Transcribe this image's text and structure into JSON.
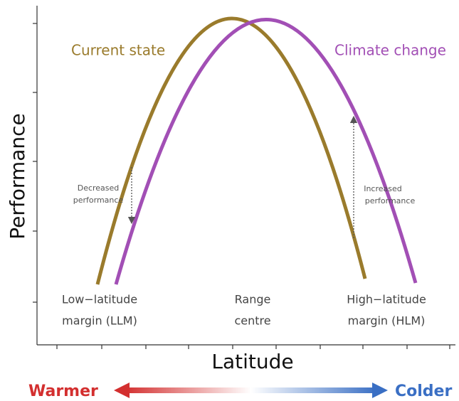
{
  "curves": {
    "current": "Current state",
    "climate": "Climate change"
  },
  "axes": {
    "y_label": "Performance",
    "x_label": "Latitude"
  },
  "positions": {
    "low": [
      "Low−latitude",
      "margin (LLM)"
    ],
    "centre": [
      "Range",
      "centre"
    ],
    "high": [
      "High−latitude",
      "margin (HLM)"
    ]
  },
  "annotations": {
    "decreased": [
      "Decreased",
      "performance"
    ],
    "increased": [
      "Increased",
      "performance"
    ]
  },
  "gradient": {
    "left": "Warmer",
    "right": "Colder"
  }
}
